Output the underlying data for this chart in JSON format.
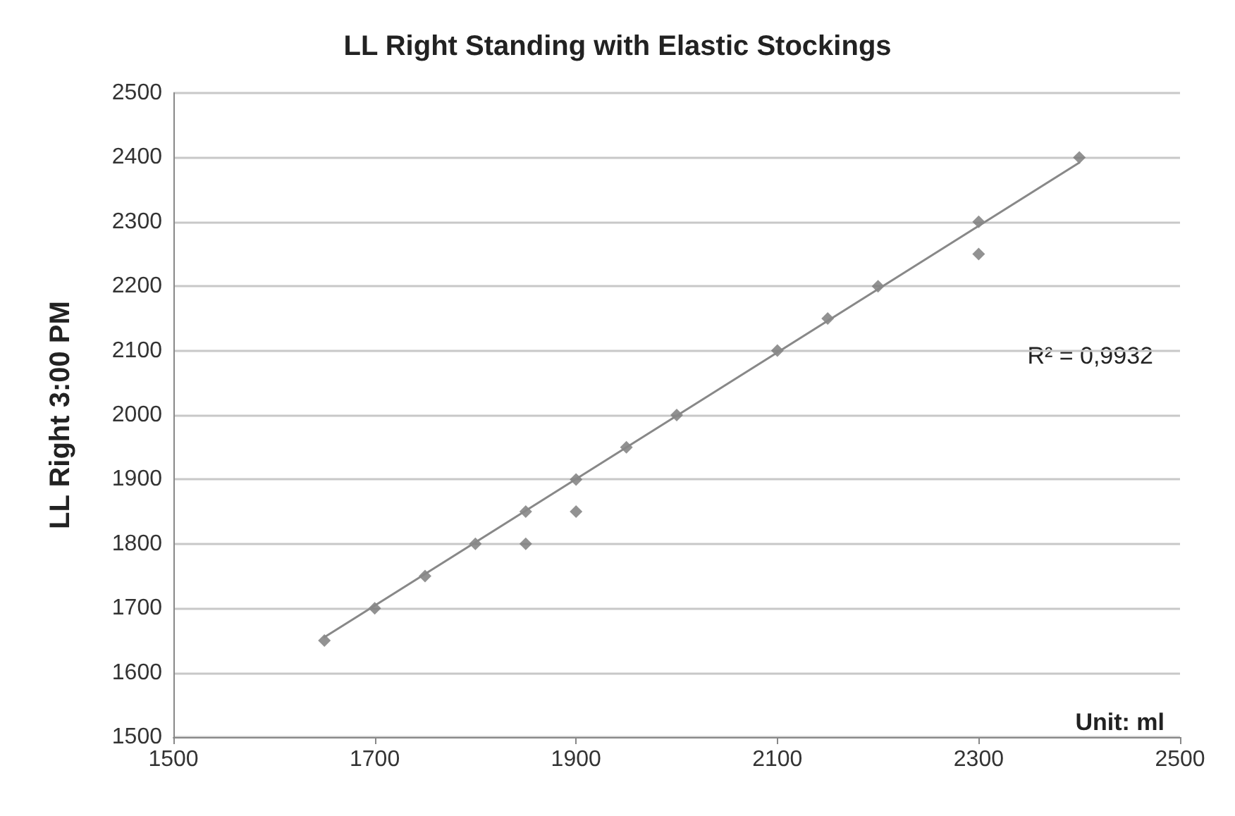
{
  "chart_data": {
    "type": "scatter",
    "title": "LL Right Standing with Elastic Stockings",
    "ylabel": "LL Right 3:00 PM",
    "xlim": [
      1500,
      2500
    ],
    "xticks": [
      1500,
      1700,
      1900,
      2100,
      2300,
      2500
    ],
    "ylim": [
      1500,
      2500
    ],
    "yticks": [
      1500,
      1600,
      1700,
      1800,
      1900,
      2000,
      2100,
      2200,
      2300,
      2400,
      2500
    ],
    "grid": "y",
    "marker": "diamond",
    "annotations": [
      "R² = 0,9932",
      "Unit: ml"
    ],
    "series": [
      {
        "color": "#777777",
        "x": [
          1650,
          1700,
          1750,
          1800,
          1850,
          1850,
          1900,
          1900,
          1950,
          2000,
          2100,
          2150,
          2200,
          2300,
          2300,
          2400
        ],
        "values": [
          1650,
          1700,
          1750,
          1800,
          1850,
          1800,
          1900,
          1850,
          1950,
          2000,
          2100,
          2150,
          2200,
          2300,
          2250,
          2400
        ]
      },
      {
        "type": "line",
        "color": "#888888",
        "marker": "none",
        "x": [
          1650,
          2400
        ],
        "values": [
          1655,
          2392
        ]
      }
    ]
  }
}
